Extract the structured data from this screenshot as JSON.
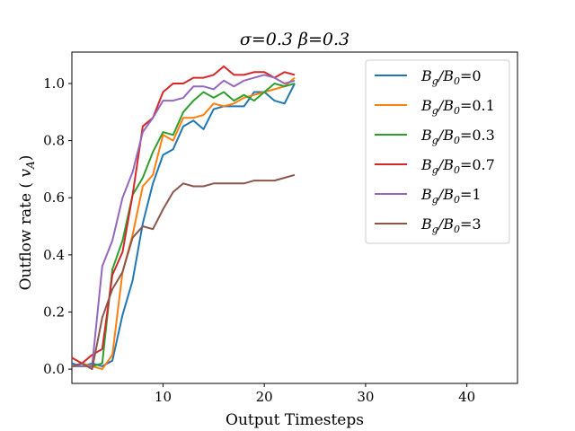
{
  "chart_data": {
    "type": "line",
    "title": "σ=0.3 β=0.3",
    "xlabel": "Output Timesteps",
    "ylabel": "Outflow rate (v_A)",
    "xlim": [
      1,
      45
    ],
    "ylim": [
      -0.05,
      1.11
    ],
    "xticks": [
      10,
      20,
      30,
      40
    ],
    "yticks": [
      0.0,
      0.2,
      0.4,
      0.6,
      0.8,
      1.0
    ],
    "xtick_labels": [
      "10",
      "20",
      "30",
      "40"
    ],
    "ytick_labels": [
      "0.0",
      "0.2",
      "0.4",
      "0.6",
      "0.8",
      "1.0"
    ],
    "grid": false,
    "legend_position": "top-right",
    "x": [
      1,
      2,
      3,
      4,
      5,
      6,
      7,
      8,
      9,
      10,
      11,
      12,
      13,
      14,
      15,
      16,
      17,
      18,
      19,
      20,
      21,
      22,
      23
    ],
    "series": [
      {
        "name": "B_g/B_0=0",
        "color": "#1f77b4",
        "values": [
          0.02,
          0.01,
          0.02,
          0.01,
          0.03,
          0.19,
          0.31,
          0.51,
          0.65,
          0.75,
          0.77,
          0.85,
          0.87,
          0.84,
          0.91,
          0.92,
          0.92,
          0.92,
          0.97,
          0.97,
          0.94,
          0.93,
          1.0
        ]
      },
      {
        "name": "B_g/B_0=0.1",
        "color": "#ff7f0e",
        "values": [
          0.01,
          0.02,
          0.01,
          0.0,
          0.05,
          0.34,
          0.47,
          0.64,
          0.68,
          0.82,
          0.8,
          0.88,
          0.88,
          0.89,
          0.93,
          0.92,
          0.93,
          0.95,
          0.96,
          0.97,
          0.98,
          0.99,
          1.02
        ]
      },
      {
        "name": "B_g/B_0=0.3",
        "color": "#2ca02c",
        "values": [
          0.01,
          0.01,
          0.01,
          0.02,
          0.35,
          0.45,
          0.61,
          0.67,
          0.76,
          0.83,
          0.82,
          0.9,
          0.94,
          0.97,
          0.95,
          0.97,
          0.94,
          0.96,
          0.94,
          0.97,
          1.0,
          0.99,
          1.0
        ]
      },
      {
        "name": "B_g/B_0=0.7",
        "color": "#d62728",
        "values": [
          0.04,
          0.02,
          0.05,
          0.07,
          0.33,
          0.41,
          0.61,
          0.85,
          0.88,
          0.97,
          1.0,
          1.0,
          1.02,
          1.02,
          1.03,
          1.06,
          1.03,
          1.03,
          1.04,
          1.04,
          1.02,
          1.04,
          1.03
        ]
      },
      {
        "name": "B_g/B_0=1",
        "color": "#9467bd",
        "values": [
          0.01,
          0.01,
          0.01,
          0.36,
          0.45,
          0.6,
          0.69,
          0.83,
          0.88,
          0.94,
          0.94,
          0.95,
          0.99,
          0.99,
          0.98,
          1.01,
          0.99,
          1.01,
          1.02,
          1.03,
          1.02,
          1.0,
          1.01
        ]
      },
      {
        "name": "B_g/B_0=3",
        "color": "#8c564b",
        "values": [
          0.01,
          0.02,
          0.0,
          0.18,
          0.28,
          0.34,
          0.46,
          0.5,
          0.49,
          0.56,
          0.62,
          0.65,
          0.64,
          0.64,
          0.65,
          0.65,
          0.65,
          0.65,
          0.66,
          0.66,
          0.66,
          0.67,
          0.68
        ]
      }
    ],
    "legend_labels": [
      {
        "base": "B",
        "sub": "g",
        "mid": "/B",
        "sub2": "0",
        "rhs": "=0"
      },
      {
        "base": "B",
        "sub": "g",
        "mid": "/B",
        "sub2": "0",
        "rhs": "=0.1"
      },
      {
        "base": "B",
        "sub": "g",
        "mid": "/B",
        "sub2": "0",
        "rhs": "=0.3"
      },
      {
        "base": "B",
        "sub": "g",
        "mid": "/B",
        "sub2": "0",
        "rhs": "=0.7"
      },
      {
        "base": "B",
        "sub": "g",
        "mid": "/B",
        "sub2": "0",
        "rhs": "=1"
      },
      {
        "base": "B",
        "sub": "g",
        "mid": "/B",
        "sub2": "0",
        "rhs": "=3"
      }
    ]
  }
}
